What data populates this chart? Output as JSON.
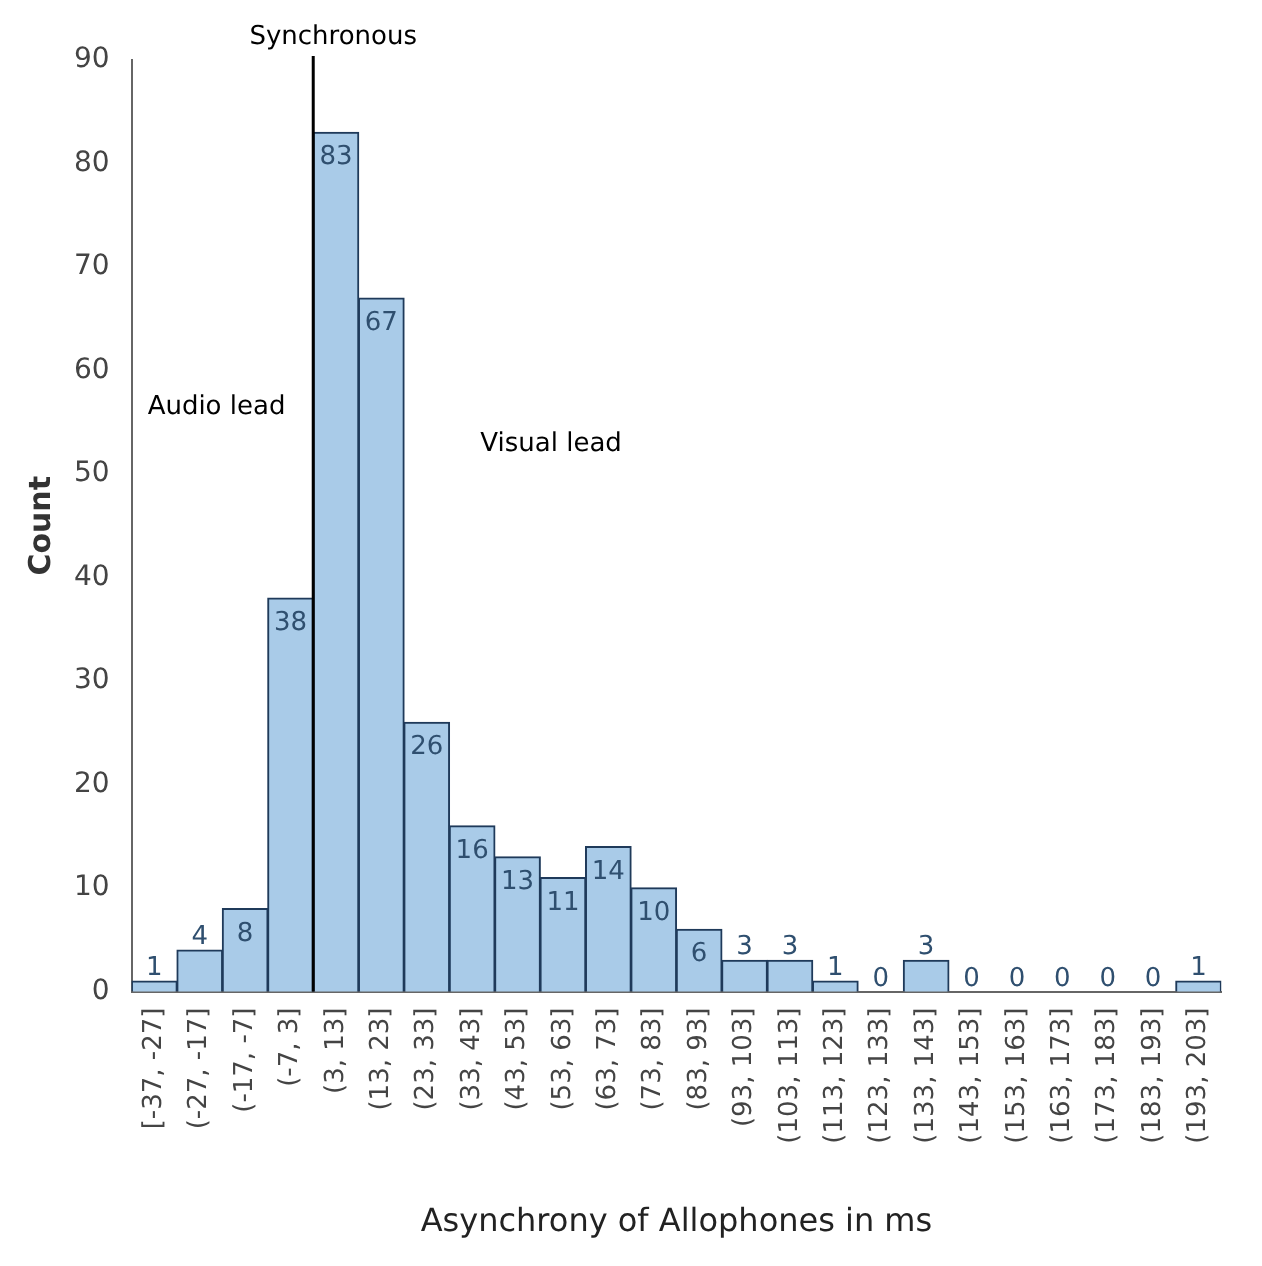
{
  "chart_data": {
    "type": "bar",
    "xlabel": "Asynchrony of Allophones in ms",
    "ylabel": "Count",
    "categories": [
      "[-37, -27]",
      "(-27, -17]",
      "(-17, -7]",
      "(-7, 3]",
      "(3, 13]",
      "(13, 23]",
      "(23, 33]",
      "(33, 43]",
      "(43, 53]",
      "(53, 63]",
      "(63, 73]",
      "(73, 83]",
      "(83, 93]",
      "(93, 103]",
      "(103, 113]",
      "(113, 123]",
      "(123, 133]",
      "(133, 143]",
      "(143, 153]",
      "(153, 163]",
      "(163, 173]",
      "(173, 183]",
      "(183, 193]",
      "(193, 203]"
    ],
    "values": [
      1,
      4,
      8,
      38,
      83,
      67,
      26,
      16,
      13,
      11,
      14,
      10,
      6,
      3,
      3,
      1,
      0,
      3,
      0,
      0,
      0,
      0,
      0,
      1
    ],
    "color": "#a9cbe8",
    "ylim": [
      0,
      90
    ],
    "yticks": [
      0,
      10,
      20,
      30,
      40,
      50,
      60,
      70,
      80,
      90
    ],
    "grid": false,
    "legend": false,
    "data_labels": true,
    "annotations": [
      "Audio lead",
      "Visual lead",
      "Synchronous"
    ]
  }
}
